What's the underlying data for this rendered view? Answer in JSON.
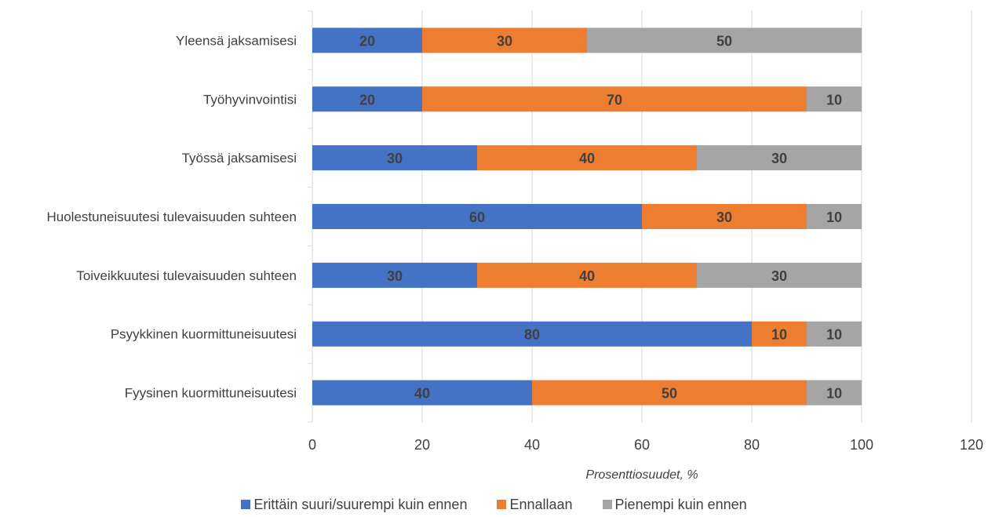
{
  "chart_data": {
    "type": "bar",
    "orientation": "horizontal",
    "stacked": true,
    "categories": [
      "Yleensä jaksamisesi",
      "Työhyvinvointisi",
      "Työssä jaksamisesi",
      "Huolestuneisuutesi tulevaisuuden suhteen",
      "Toiveikkuutesi tulevaisuuden suhteen",
      "Psyykkinen kuormittuneisuutesi",
      "Fyysinen kuormittuneisuutesi"
    ],
    "series": [
      {
        "name": "Erittäin suuri/suurempi kuin ennen",
        "color": "#4472C4",
        "values": [
          20,
          20,
          30,
          60,
          30,
          80,
          40
        ]
      },
      {
        "name": "Ennallaan",
        "color": "#ED7D31",
        "values": [
          30,
          70,
          40,
          30,
          40,
          10,
          50
        ]
      },
      {
        "name": "Pienempi kuin ennen",
        "color": "#A5A5A5",
        "values": [
          50,
          10,
          30,
          10,
          30,
          10,
          10
        ]
      }
    ],
    "xlabel": "Prosenttiosuudet, %",
    "xlim": [
      0,
      120
    ],
    "xticks": [
      0,
      20,
      40,
      60,
      80,
      100,
      120
    ],
    "grid": true,
    "legend_position": "bottom"
  }
}
